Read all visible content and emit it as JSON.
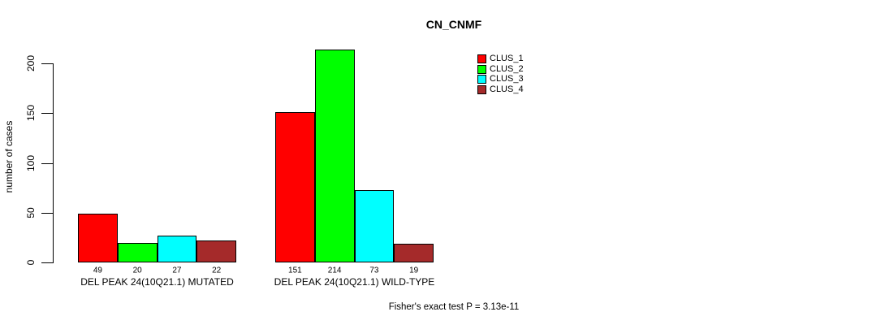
{
  "chart_data": {
    "type": "bar",
    "title": "CN_CNMF",
    "ylabel": "number of cases",
    "xlabel": "",
    "categories": [
      "DEL PEAK 24(10Q21.1) MUTATED",
      "DEL PEAK 24(10Q21.1) WILD-TYPE"
    ],
    "series": [
      {
        "name": "CLUS_1",
        "color": "#FF0000",
        "values": [
          49,
          151
        ]
      },
      {
        "name": "CLUS_2",
        "color": "#00FF00",
        "values": [
          20,
          214
        ]
      },
      {
        "name": "CLUS_3",
        "color": "#00FFFF",
        "values": [
          27,
          73
        ]
      },
      {
        "name": "CLUS_4",
        "color": "#A52A2A",
        "values": [
          22,
          19
        ]
      }
    ],
    "yticks": [
      0,
      50,
      100,
      150,
      200
    ],
    "ylim": [
      0,
      220
    ],
    "grid": false,
    "legend_position": "top-right-inside",
    "bar_border_color": "#000000",
    "bar_value_labels_shown": true,
    "annotation": "Fisher's exact test P = 3.13e-11"
  }
}
